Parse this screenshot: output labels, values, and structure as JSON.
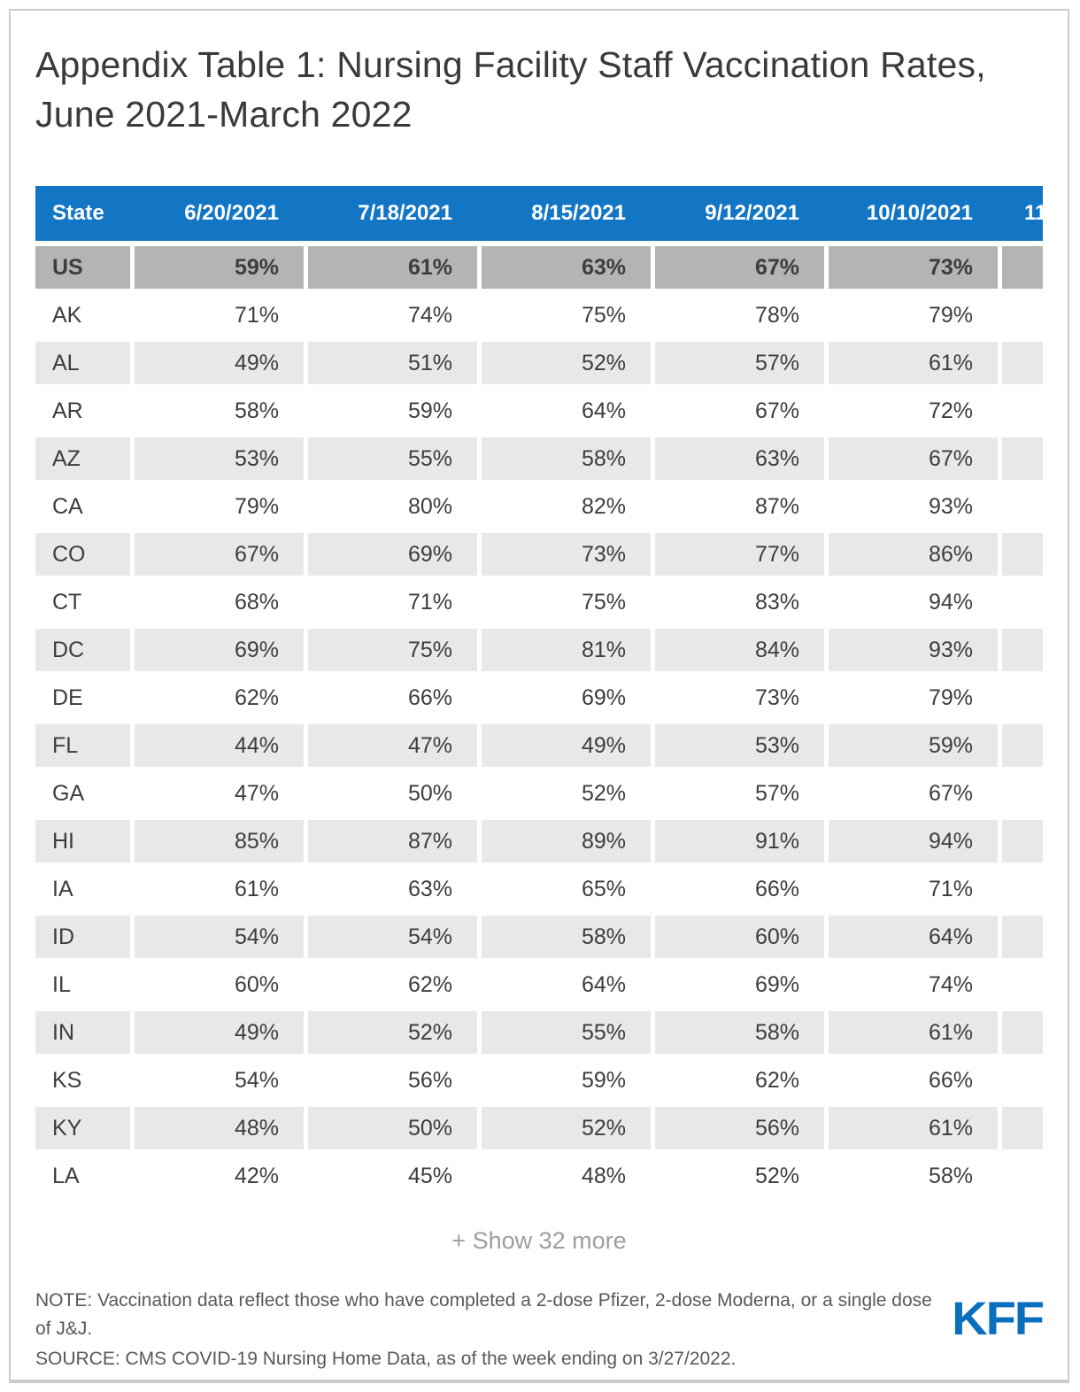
{
  "title": "Appendix Table 1: Nursing Facility Staff Vaccination Rates, June 2021-March 2022",
  "show_more_label": "+ Show 32 more",
  "note": "NOTE: Vaccination data reflect those who have completed a 2-dose Pfizer, 2-dose Moderna, or a single dose of J&J.",
  "source": "SOURCE: CMS COVID-19 Nursing Home Data, as of the week ending on 3/27/2022.",
  "logo": "KFF",
  "colors": {
    "header_bg": "#1376C5",
    "header_text": "#ffffff",
    "highlight_row_bg": "#b4b4b4",
    "alt_row_bg": "#e8e8e8",
    "body_text": "#3d3d3d",
    "logo_blue": "#0a6fbe"
  },
  "chart_data": {
    "type": "table",
    "title": "Appendix Table 1: Nursing Facility Staff Vaccination Rates, June 2021-March 2022",
    "columns": [
      "State",
      "6/20/2021",
      "7/18/2021",
      "8/15/2021",
      "9/12/2021",
      "10/10/2021",
      "11"
    ],
    "last_column_clipped": true,
    "rows": [
      {
        "state": "US",
        "values": [
          "59%",
          "61%",
          "63%",
          "67%",
          "73%",
          ""
        ],
        "highlight": true
      },
      {
        "state": "AK",
        "values": [
          "71%",
          "74%",
          "75%",
          "78%",
          "79%",
          ""
        ]
      },
      {
        "state": "AL",
        "values": [
          "49%",
          "51%",
          "52%",
          "57%",
          "61%",
          ""
        ]
      },
      {
        "state": "AR",
        "values": [
          "58%",
          "59%",
          "64%",
          "67%",
          "72%",
          ""
        ]
      },
      {
        "state": "AZ",
        "values": [
          "53%",
          "55%",
          "58%",
          "63%",
          "67%",
          ""
        ]
      },
      {
        "state": "CA",
        "values": [
          "79%",
          "80%",
          "82%",
          "87%",
          "93%",
          ""
        ]
      },
      {
        "state": "CO",
        "values": [
          "67%",
          "69%",
          "73%",
          "77%",
          "86%",
          ""
        ]
      },
      {
        "state": "CT",
        "values": [
          "68%",
          "71%",
          "75%",
          "83%",
          "94%",
          ""
        ]
      },
      {
        "state": "DC",
        "values": [
          "69%",
          "75%",
          "81%",
          "84%",
          "93%",
          ""
        ]
      },
      {
        "state": "DE",
        "values": [
          "62%",
          "66%",
          "69%",
          "73%",
          "79%",
          ""
        ]
      },
      {
        "state": "FL",
        "values": [
          "44%",
          "47%",
          "49%",
          "53%",
          "59%",
          ""
        ]
      },
      {
        "state": "GA",
        "values": [
          "47%",
          "50%",
          "52%",
          "57%",
          "67%",
          ""
        ]
      },
      {
        "state": "HI",
        "values": [
          "85%",
          "87%",
          "89%",
          "91%",
          "94%",
          ""
        ]
      },
      {
        "state": "IA",
        "values": [
          "61%",
          "63%",
          "65%",
          "66%",
          "71%",
          ""
        ]
      },
      {
        "state": "ID",
        "values": [
          "54%",
          "54%",
          "58%",
          "60%",
          "64%",
          ""
        ]
      },
      {
        "state": "IL",
        "values": [
          "60%",
          "62%",
          "64%",
          "69%",
          "74%",
          ""
        ]
      },
      {
        "state": "IN",
        "values": [
          "49%",
          "52%",
          "55%",
          "58%",
          "61%",
          ""
        ]
      },
      {
        "state": "KS",
        "values": [
          "54%",
          "56%",
          "59%",
          "62%",
          "66%",
          ""
        ]
      },
      {
        "state": "KY",
        "values": [
          "48%",
          "50%",
          "52%",
          "56%",
          "61%",
          ""
        ]
      },
      {
        "state": "LA",
        "values": [
          "42%",
          "45%",
          "48%",
          "52%",
          "58%",
          ""
        ]
      }
    ]
  }
}
